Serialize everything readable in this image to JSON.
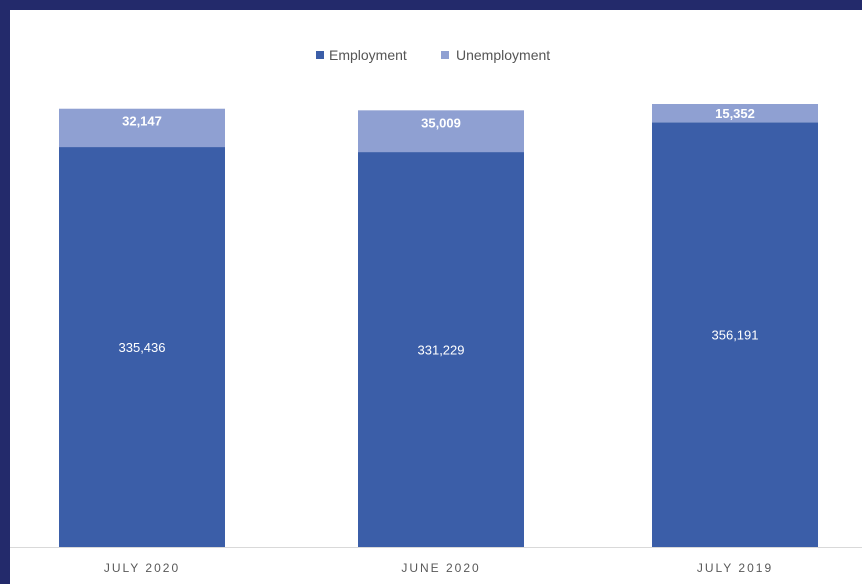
{
  "chart_data": {
    "type": "bar",
    "stacked": true,
    "categories": [
      "JULY 2020",
      "JUNE 2020",
      "JULY 2019"
    ],
    "series": [
      {
        "name": "Employment",
        "values": [
          335436,
          331229,
          356191
        ],
        "labels": [
          "335,436",
          "331,229",
          "356,191"
        ],
        "color": "#3b5ea8"
      },
      {
        "name": "Unemployment",
        "values": [
          32147,
          35009,
          15352
        ],
        "labels": [
          "32,147",
          "35,009",
          "15,352"
        ],
        "color": "#8fa0d2"
      }
    ],
    "ylim": [
      0,
      371543
    ],
    "legend_position": "top-center",
    "grid": false
  }
}
